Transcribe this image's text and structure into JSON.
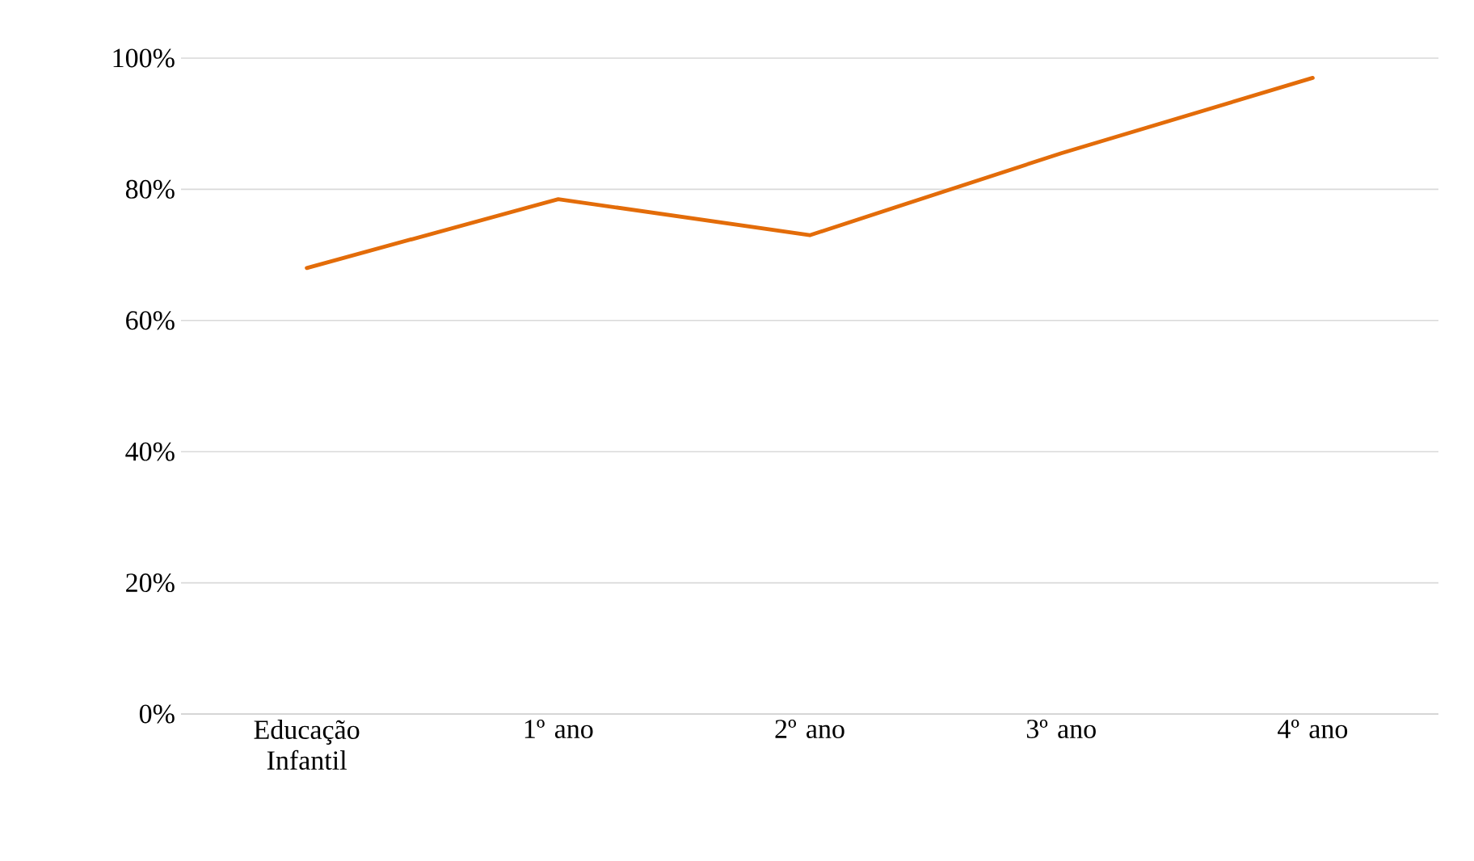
{
  "chart_data": {
    "type": "line",
    "categories": [
      "Educação Infantil",
      "1º ano",
      "2º ano",
      "3º ano",
      "4º ano"
    ],
    "series": [
      {
        "color": "#e36c09",
        "values": [
          68,
          78.5,
          73,
          85.5,
          97
        ]
      }
    ],
    "ylim": [
      0,
      100
    ],
    "yticks": [
      {
        "value": 0,
        "label": "0%"
      },
      {
        "value": 20,
        "label": "20%"
      },
      {
        "value": 40,
        "label": "40%"
      },
      {
        "value": 60,
        "label": "60%"
      },
      {
        "value": 80,
        "label": "80%"
      },
      {
        "value": 100,
        "label": "100%"
      }
    ],
    "grid": "y",
    "marker": "none",
    "line_style": "solid"
  }
}
